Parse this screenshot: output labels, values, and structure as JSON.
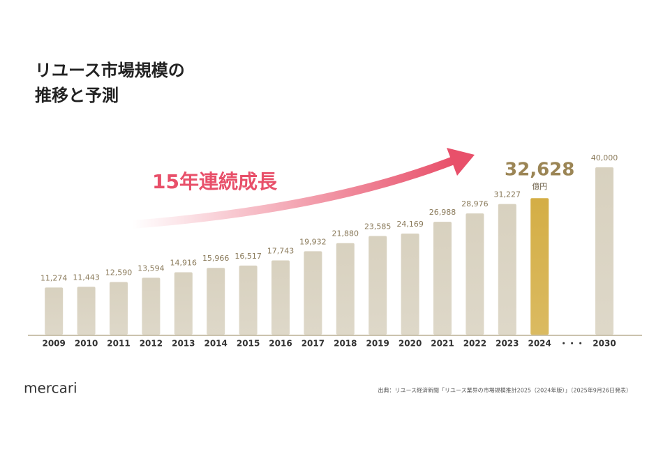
{
  "chart_data": {
    "type": "bar",
    "title_lines": [
      "リユース市場規模の",
      "推移と予測"
    ],
    "annotation": "15年連続成長",
    "categories": [
      "2009",
      "2010",
      "2011",
      "2012",
      "2013",
      "2014",
      "2015",
      "2016",
      "2017",
      "2018",
      "2019",
      "2020",
      "2021",
      "2022",
      "2023",
      "2024",
      "・・・",
      "2030"
    ],
    "values": [
      11274,
      11443,
      12590,
      13594,
      14916,
      15966,
      16517,
      17743,
      19932,
      21880,
      23585,
      24169,
      26988,
      28976,
      31227,
      32628,
      null,
      40000
    ],
    "value_labels": [
      "11,274",
      "11,443",
      "12,590",
      "13,594",
      "14,916",
      "15,966",
      "16,517",
      "17,743",
      "19,932",
      "21,880",
      "23,585",
      "24,169",
      "26,988",
      "28,976",
      "31,227",
      "32,628",
      null,
      "40,000"
    ],
    "colors": [
      "#d8d1bf",
      "#d8d1bf",
      "#d8d1bf",
      "#d8d1bf",
      "#d8d1bf",
      "#d8d1bf",
      "#d8d1bf",
      "#d8d1bf",
      "#d8d1bf",
      "#d8d1bf",
      "#d8d1bf",
      "#d8d1bf",
      "#d8d1bf",
      "#d8d1bf",
      "#d8d1bf",
      "#d4ae45",
      null,
      "#d8d1bf"
    ],
    "highlight_unit": "億円",
    "logo": "mercari",
    "source": "出典：リユース経済新聞「リユース業界の市場規模推計2025（2024年版）」（2025年9月26日発表）"
  }
}
